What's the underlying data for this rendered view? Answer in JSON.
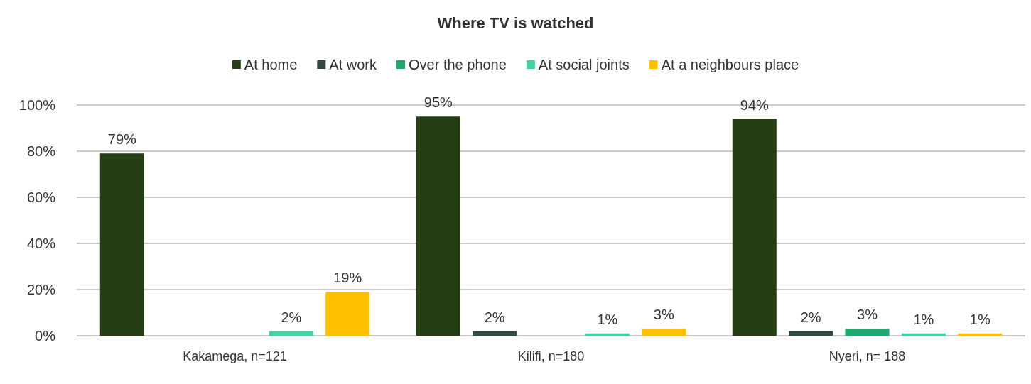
{
  "chart_data": {
    "type": "bar",
    "title": "Where TV is watched",
    "categories": [
      "Kakamega, n=121",
      "Kilifi, n=180",
      "Nyeri, n= 188"
    ],
    "series": [
      {
        "name": "At home",
        "color": "#253d12",
        "values": [
          79,
          95,
          94
        ],
        "value_labels": [
          "79%",
          "95%",
          "94%"
        ]
      },
      {
        "name": "At work",
        "color": "#2f4a40",
        "values": [
          null,
          2,
          2
        ],
        "value_labels": [
          null,
          "2%",
          "2%"
        ]
      },
      {
        "name": "Over the phone",
        "color": "#1fa870",
        "values": [
          null,
          null,
          3
        ],
        "value_labels": [
          null,
          null,
          "3%"
        ]
      },
      {
        "name": "At social joints",
        "color": "#3dd4a0",
        "values": [
          2,
          1,
          1
        ],
        "value_labels": [
          "2%",
          "1%",
          "1%"
        ]
      },
      {
        "name": "At a neighbours place",
        "color": "#ffc000",
        "values": [
          19,
          3,
          1
        ],
        "value_labels": [
          "19%",
          "3%",
          "1%"
        ]
      }
    ],
    "ylim": [
      0,
      100
    ],
    "yticks": [
      {
        "value": 0,
        "label": "0%"
      },
      {
        "value": 20,
        "label": "20%"
      },
      {
        "value": 40,
        "label": "40%"
      },
      {
        "value": 60,
        "label": "60%"
      },
      {
        "value": 80,
        "label": "80%"
      },
      {
        "value": 100,
        "label": "100%"
      }
    ],
    "grid": "y",
    "legend": "top"
  }
}
